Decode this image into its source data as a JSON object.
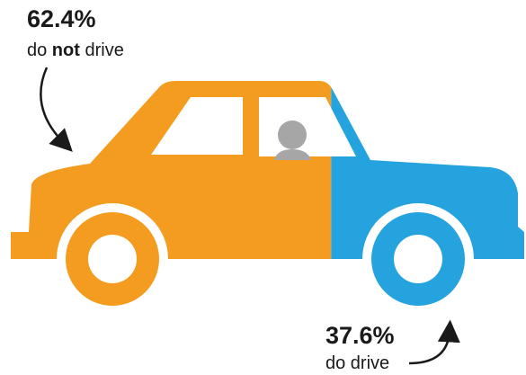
{
  "chart_data": {
    "type": "pictorial",
    "categories": [
      "do not drive",
      "do drive"
    ],
    "values": [
      62.4,
      37.6
    ],
    "value_labels": [
      "62.4%",
      "37.6%"
    ],
    "colors": [
      "#f39c1f",
      "#24a3de"
    ]
  }
}
